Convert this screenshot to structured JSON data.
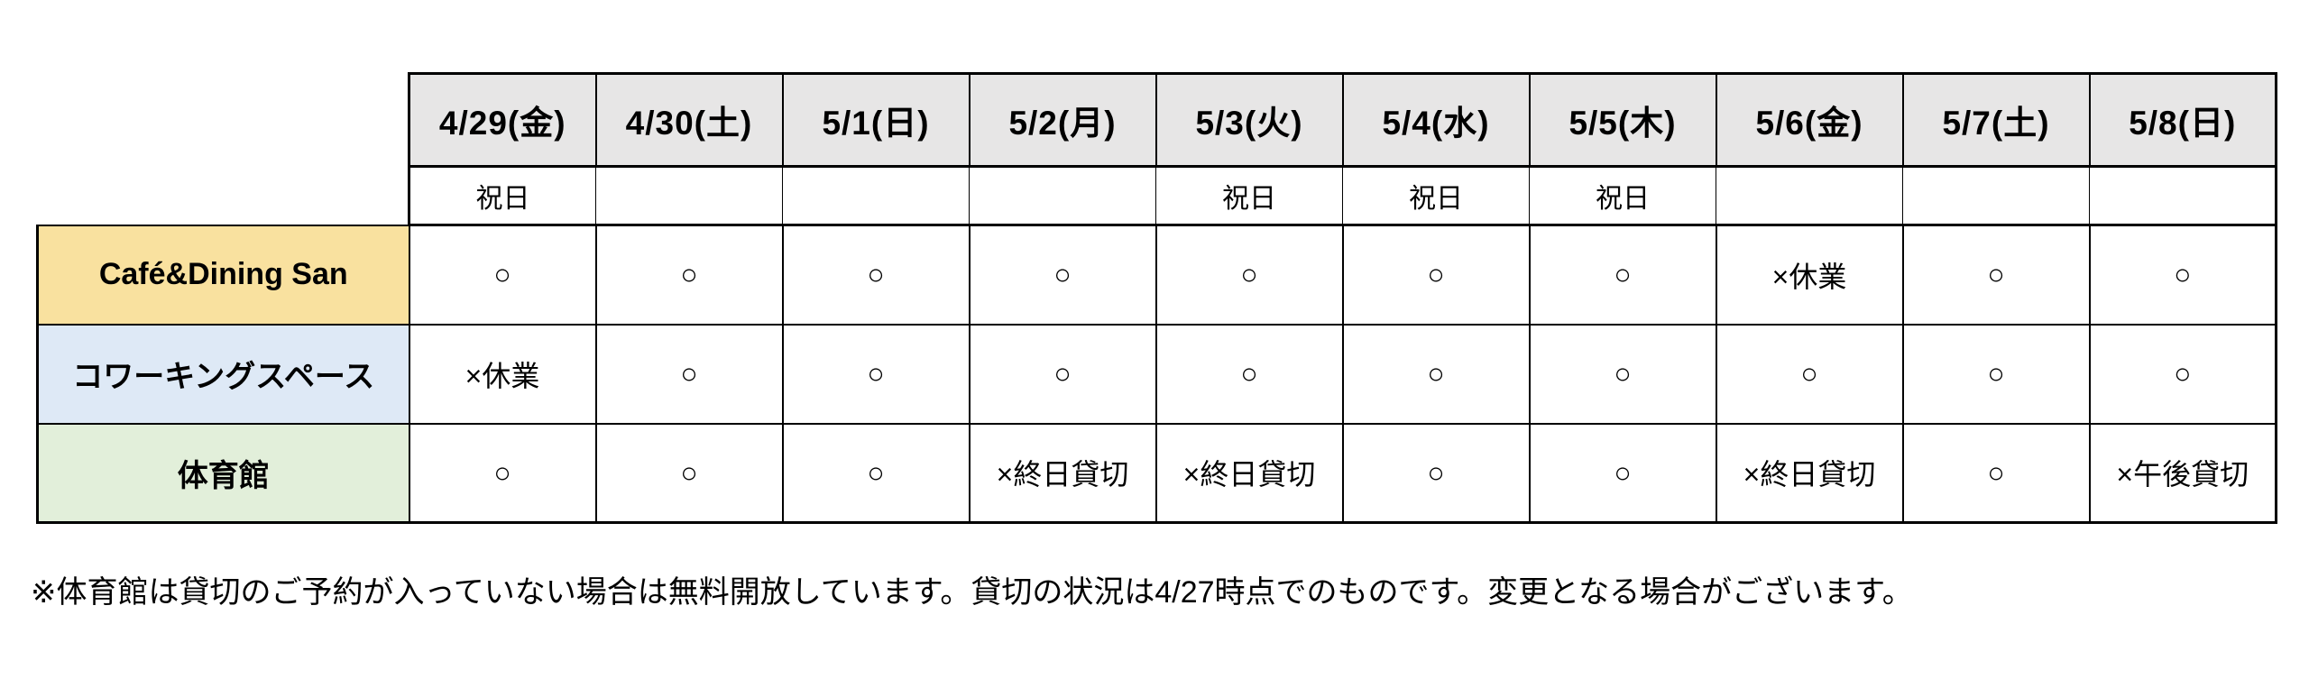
{
  "table": {
    "date_headers": [
      "4/29(金)",
      "4/30(土)",
      "5/1(日)",
      "5/2(月)",
      "5/3(火)",
      "5/4(水)",
      "5/5(木)",
      "5/6(金)",
      "5/7(土)",
      "5/8(日)"
    ],
    "holiday_row": [
      "祝日",
      "",
      "",
      "",
      "祝日",
      "祝日",
      "祝日",
      "",
      "",
      ""
    ],
    "facility_rows": [
      {
        "label": "Café&Dining San",
        "cells": [
          "○",
          "○",
          "○",
          "○",
          "○",
          "○",
          "○",
          "×休業",
          "○",
          "○"
        ]
      },
      {
        "label": "コワーキングスペース",
        "cells": [
          "×休業",
          "○",
          "○",
          "○",
          "○",
          "○",
          "○",
          "○",
          "○",
          "○"
        ]
      },
      {
        "label": "体育館",
        "cells": [
          "○",
          "○",
          "○",
          "×終日貸切",
          "×終日貸切",
          "○",
          "○",
          "×終日貸切",
          "○",
          "×午後貸切"
        ]
      }
    ]
  },
  "footnote": "※体育館は貸切のご予約が入っていない場合は無料開放しています。貸切の状況は4/27時点でのものです。変更となる場合がございます。",
  "colors": {
    "header_bg": "#E7E6E6",
    "cafe_row_bg": "#F9E19F",
    "coworking_row_bg": "#DEE9F6",
    "gym_row_bg": "#E2EFDA",
    "border": "#000000"
  }
}
